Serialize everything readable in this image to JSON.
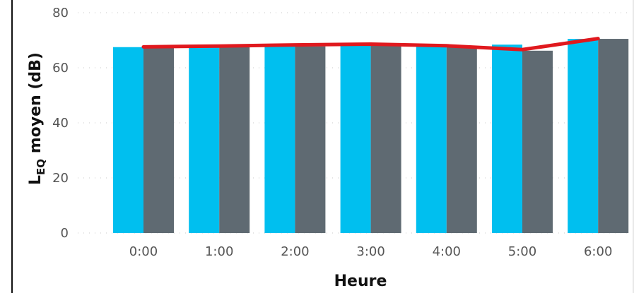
{
  "chart_data": {
    "type": "bar",
    "categories": [
      "0:00",
      "1:00",
      "2:00",
      "3:00",
      "4:00",
      "5:00",
      "6:00"
    ],
    "series": [
      {
        "values": [
          67.5,
          67.8,
          68.0,
          68.3,
          67.8,
          68.4,
          70.5
        ],
        "color": "#00bfef"
      },
      {
        "values": [
          67.5,
          67.5,
          67.8,
          68.0,
          67.6,
          66.2,
          70.5
        ],
        "color": "#5f6a72"
      }
    ],
    "line": {
      "values": [
        67.6,
        67.9,
        68.3,
        68.6,
        68.0,
        66.6,
        70.6
      ],
      "color": "#e0191e"
    },
    "xlabel": "Heure",
    "ylabel": {
      "main": "L",
      "subscript": "EQ",
      "rest": " moyen (dB)"
    },
    "ylim": [
      0,
      80
    ],
    "yticks": [
      "0",
      "20",
      "40",
      "60",
      "80"
    ],
    "grid": true,
    "legend": "none"
  }
}
